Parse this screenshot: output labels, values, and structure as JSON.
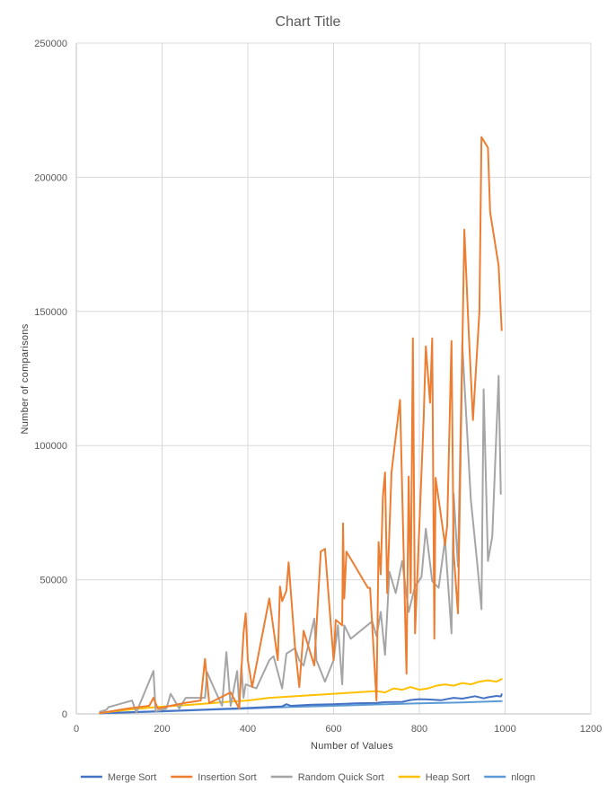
{
  "chart_data": {
    "type": "line",
    "title": "Chart Title",
    "xlabel": "Number  of Values",
    "ylabel": "Number  of comparisons",
    "xlim": [
      0,
      1200
    ],
    "ylim": [
      0,
      250000
    ],
    "x_ticks": [
      0,
      200,
      400,
      600,
      800,
      1000,
      1200
    ],
    "y_ticks": [
      0,
      50000,
      100000,
      150000,
      200000,
      250000
    ],
    "x_tick_labels": [
      "0",
      "200",
      "400",
      "600",
      "800",
      "1000",
      "1200"
    ],
    "y_tick_labels": [
      "0",
      "50000",
      "100000",
      "150000",
      "200000",
      "250000"
    ],
    "grid": "vertical and horizontal major gridlines",
    "legend": "bottom",
    "series": [
      {
        "name": "Merge Sort",
        "color": "#4472C4",
        "points": [
          [
            55,
            250
          ],
          [
            100,
            500
          ],
          [
            180,
            900
          ],
          [
            250,
            1300
          ],
          [
            300,
            1600
          ],
          [
            350,
            1900
          ],
          [
            400,
            2200
          ],
          [
            450,
            2600
          ],
          [
            480,
            2800
          ],
          [
            490,
            3600
          ],
          [
            500,
            3000
          ],
          [
            550,
            3400
          ],
          [
            600,
            3600
          ],
          [
            650,
            3900
          ],
          [
            700,
            4100
          ],
          [
            720,
            4400
          ],
          [
            760,
            4500
          ],
          [
            780,
            5200
          ],
          [
            800,
            5500
          ],
          [
            820,
            5400
          ],
          [
            850,
            5100
          ],
          [
            880,
            6000
          ],
          [
            900,
            5700
          ],
          [
            930,
            6600
          ],
          [
            950,
            5800
          ],
          [
            960,
            6200
          ],
          [
            980,
            6700
          ],
          [
            990,
            6500
          ],
          [
            992,
            7300
          ]
        ]
      },
      {
        "name": "Insertion Sort",
        "color": "#ED7D31",
        "points": [
          [
            55,
            300
          ],
          [
            120,
            2000
          ],
          [
            170,
            3000
          ],
          [
            180,
            6000
          ],
          [
            190,
            2000
          ],
          [
            250,
            4000
          ],
          [
            290,
            5000
          ],
          [
            300,
            20500
          ],
          [
            310,
            4000
          ],
          [
            360,
            8000
          ],
          [
            380,
            2000
          ],
          [
            390,
            30000
          ],
          [
            395,
            37500
          ],
          [
            400,
            20000
          ],
          [
            410,
            10000
          ],
          [
            450,
            43000
          ],
          [
            470,
            20000
          ],
          [
            475,
            47500
          ],
          [
            480,
            42000
          ],
          [
            490,
            46000
          ],
          [
            495,
            56500
          ],
          [
            510,
            25000
          ],
          [
            520,
            10000
          ],
          [
            530,
            31000
          ],
          [
            555,
            18000
          ],
          [
            570,
            60500
          ],
          [
            580,
            61500
          ],
          [
            600,
            20000
          ],
          [
            605,
            35000
          ],
          [
            620,
            33000
          ],
          [
            622,
            71000
          ],
          [
            625,
            43000
          ],
          [
            630,
            60500
          ],
          [
            680,
            47000
          ],
          [
            685,
            47000
          ],
          [
            700,
            5000
          ],
          [
            705,
            64000
          ],
          [
            710,
            52000
          ],
          [
            715,
            81000
          ],
          [
            720,
            90000
          ],
          [
            725,
            45000
          ],
          [
            735,
            90000
          ],
          [
            755,
            117000
          ],
          [
            770,
            15000
          ],
          [
            775,
            88500
          ],
          [
            780,
            45000
          ],
          [
            785,
            140000
          ],
          [
            790,
            30000
          ],
          [
            810,
            110000
          ],
          [
            815,
            137000
          ],
          [
            825,
            116000
          ],
          [
            830,
            140000
          ],
          [
            835,
            28000
          ],
          [
            838,
            88000
          ],
          [
            860,
            63000
          ],
          [
            865,
            70000
          ],
          [
            875,
            139000
          ],
          [
            880,
            60000
          ],
          [
            890,
            37500
          ],
          [
            900,
            134000
          ],
          [
            905,
            180500
          ],
          [
            915,
            143000
          ],
          [
            925,
            109500
          ],
          [
            940,
            150000
          ],
          [
            945,
            215000
          ],
          [
            960,
            211000
          ],
          [
            965,
            187000
          ],
          [
            985,
            167000
          ],
          [
            992,
            143000
          ]
        ]
      },
      {
        "name": "Random Quick Sort",
        "color": "#A5A5A5",
        "points": [
          [
            55,
            800
          ],
          [
            70,
            1500
          ],
          [
            75,
            2500
          ],
          [
            130,
            5000
          ],
          [
            140,
            500
          ],
          [
            180,
            16000
          ],
          [
            185,
            1000
          ],
          [
            210,
            2000
          ],
          [
            220,
            7500
          ],
          [
            240,
            2000
          ],
          [
            255,
            6000
          ],
          [
            300,
            6000
          ],
          [
            305,
            15500
          ],
          [
            320,
            10000
          ],
          [
            340,
            3000
          ],
          [
            350,
            23000
          ],
          [
            360,
            3000
          ],
          [
            375,
            16000
          ],
          [
            380,
            3000
          ],
          [
            385,
            18000
          ],
          [
            390,
            6000
          ],
          [
            395,
            11000
          ],
          [
            420,
            9500
          ],
          [
            450,
            20000
          ],
          [
            460,
            21500
          ],
          [
            480,
            9500
          ],
          [
            490,
            22500
          ],
          [
            510,
            24500
          ],
          [
            520,
            20000
          ],
          [
            530,
            18000
          ],
          [
            555,
            35500
          ],
          [
            560,
            20000
          ],
          [
            580,
            12000
          ],
          [
            600,
            20000
          ],
          [
            610,
            33000
          ],
          [
            620,
            11000
          ],
          [
            625,
            33000
          ],
          [
            640,
            28000
          ],
          [
            690,
            34500
          ],
          [
            700,
            29000
          ],
          [
            710,
            38000
          ],
          [
            720,
            22000
          ],
          [
            730,
            53000
          ],
          [
            745,
            45000
          ],
          [
            760,
            57000
          ],
          [
            775,
            38000
          ],
          [
            790,
            47500
          ],
          [
            805,
            51000
          ],
          [
            815,
            69000
          ],
          [
            830,
            49500
          ],
          [
            845,
            47000
          ],
          [
            860,
            65000
          ],
          [
            875,
            30000
          ],
          [
            880,
            82000
          ],
          [
            890,
            55000
          ],
          [
            900,
            138000
          ],
          [
            920,
            80000
          ],
          [
            935,
            56000
          ],
          [
            945,
            39000
          ],
          [
            950,
            121000
          ],
          [
            960,
            57000
          ],
          [
            970,
            66000
          ],
          [
            985,
            126000
          ],
          [
            990,
            82000
          ]
        ]
      },
      {
        "name": "Heap Sort",
        "color": "#FFC000",
        "points": [
          [
            55,
            300
          ],
          [
            100,
            1200
          ],
          [
            150,
            2000
          ],
          [
            200,
            2700
          ],
          [
            250,
            3200
          ],
          [
            300,
            3800
          ],
          [
            350,
            4500
          ],
          [
            400,
            5000
          ],
          [
            450,
            6000
          ],
          [
            500,
            6500
          ],
          [
            550,
            7000
          ],
          [
            600,
            7500
          ],
          [
            650,
            8000
          ],
          [
            700,
            8500
          ],
          [
            720,
            8000
          ],
          [
            740,
            9500
          ],
          [
            760,
            9000
          ],
          [
            780,
            10000
          ],
          [
            800,
            9000
          ],
          [
            820,
            9500
          ],
          [
            840,
            10500
          ],
          [
            860,
            11000
          ],
          [
            880,
            10500
          ],
          [
            900,
            11500
          ],
          [
            920,
            11000
          ],
          [
            940,
            12000
          ],
          [
            960,
            12500
          ],
          [
            980,
            12000
          ],
          [
            992,
            13000
          ]
        ]
      },
      {
        "name": "nlogn",
        "color": "#5B9BD5",
        "points": [
          [
            55,
            200
          ],
          [
            100,
            400
          ],
          [
            200,
            900
          ],
          [
            300,
            1500
          ],
          [
            400,
            2000
          ],
          [
            500,
            2600
          ],
          [
            600,
            3000
          ],
          [
            700,
            3500
          ],
          [
            800,
            3900
          ],
          [
            900,
            4300
          ],
          [
            992,
            4800
          ]
        ]
      }
    ]
  }
}
